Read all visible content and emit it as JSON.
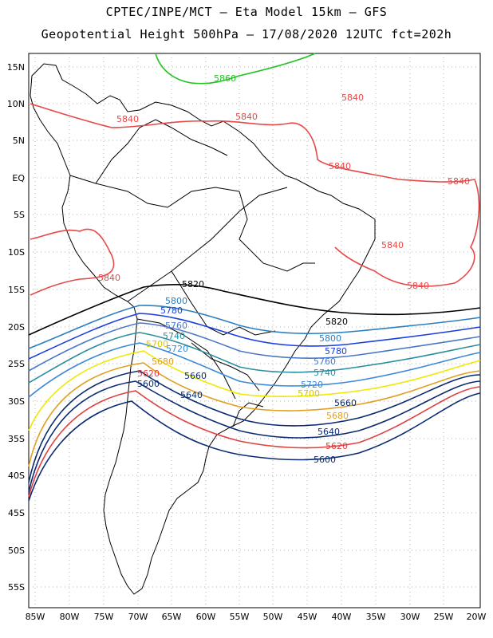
{
  "title": {
    "line1": "CPTEC/INPE/MCT –  Eta Model 15km – GFS",
    "line2": "Geopotential Height 500hPa – 17/08/2020 12UTC fct=202h"
  },
  "axes": {
    "lat_labels": [
      "15N",
      "10N",
      "5N",
      "EQ",
      "5S",
      "10S",
      "15S",
      "20S",
      "25S",
      "30S",
      "35S",
      "40S",
      "45S",
      "50S",
      "55S"
    ],
    "lon_labels": [
      "85W",
      "80W",
      "75W",
      "70W",
      "65W",
      "60W",
      "55W",
      "50W",
      "45W",
      "40W",
      "35W",
      "30W",
      "25W",
      "20W"
    ]
  },
  "contours": [
    {
      "value": "5860",
      "color": "#22c422"
    },
    {
      "value": "5840",
      "color": "#e84848"
    },
    {
      "value": "5820",
      "color": "#000000"
    },
    {
      "value": "5800",
      "color": "#2a7fc0"
    },
    {
      "value": "5780",
      "color": "#1a3ee0"
    },
    {
      "value": "5760",
      "color": "#4a78c8"
    },
    {
      "value": "5740",
      "color": "#2a8ea0"
    },
    {
      "value": "5720",
      "color": "#3a8ad8"
    },
    {
      "value": "5700",
      "color": "#f0e800"
    },
    {
      "value": "5680",
      "color": "#e0a020"
    },
    {
      "value": "5660",
      "color": "#0a2a70"
    },
    {
      "value": "5640",
      "color": "#0a2a70"
    },
    {
      "value": "5620",
      "color": "#e04040"
    },
    {
      "value": "5600",
      "color": "#0a2a70"
    }
  ]
}
